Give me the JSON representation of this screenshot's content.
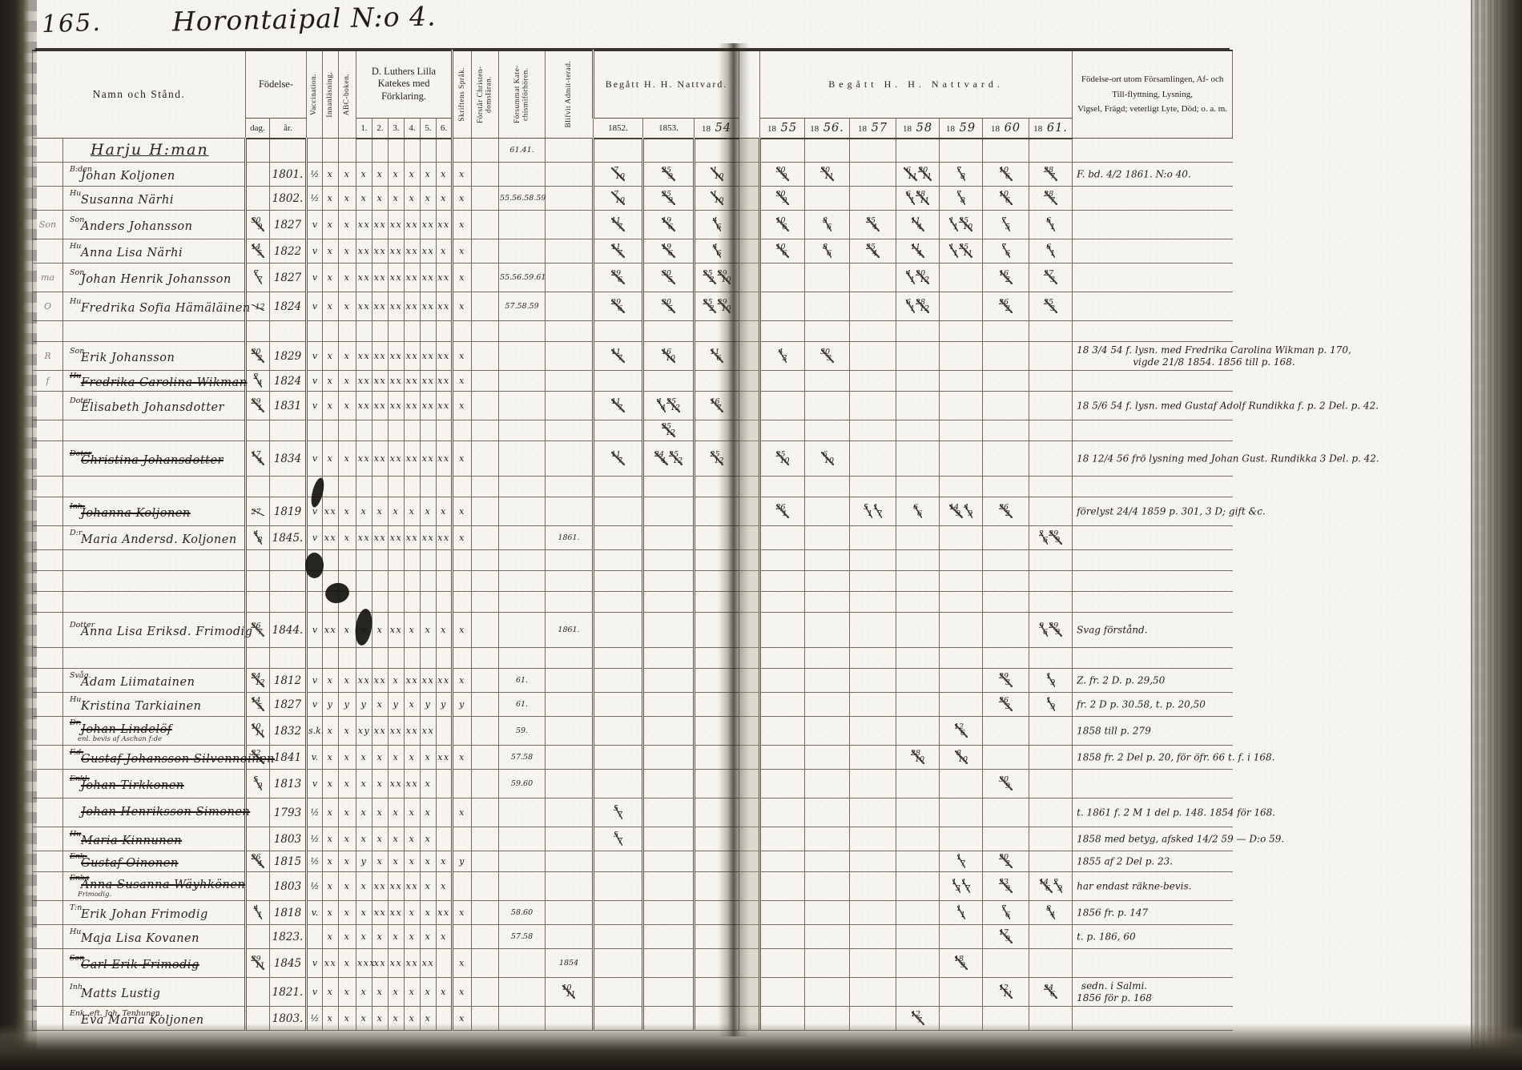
{
  "page": {
    "number": "165.",
    "title": "Horontaipal N:o 4."
  },
  "header": {
    "name": "Namn och Stånd.",
    "birth": "Födelse-",
    "birth_day": "dag.",
    "birth_year": "år.",
    "vaccination": "Vaccination.",
    "innanlasning": "Innanläsning.",
    "abc": "ABC-boken.",
    "katekes": "D. Luthers Lilla Katekes med Förklaring.",
    "katekes_cols": [
      "1.",
      "2.",
      "3.",
      "4.",
      "5.",
      "6."
    ],
    "sprak": "Skriftens Språk.",
    "forstar": "Förstår Christen-domsläran.",
    "forsummat": "Försummat Kate-chismiförhören.",
    "admitterad": "Blifvit Admit-terad.",
    "nattvard_left": "Begått H. H. Nattvard.",
    "years_left": [
      "1852.",
      "1853.",
      "1854"
    ],
    "nattvard_right": "Begått H. H. Nattvard.",
    "years_right": [
      "1855",
      "1856.",
      "1857",
      "1858",
      "1859",
      "1860",
      "1861."
    ],
    "notes_line1": "Födelse-ort utom Församlingen, Af- och Till-flyttning, Lysning,",
    "notes_line2": "Vigsel, Frägd; veterligt Lyte, Död; o. a. m."
  },
  "rows": [
    {
      "h": "d",
      "heading": true,
      "name": "Harju H:man",
      "fs": "61.41."
    },
    {
      "h": "d",
      "label": "B:den",
      "name": "Johan Koljonen",
      "by": "1801.",
      "vc": "½",
      "in": "x",
      "ab": "x",
      "k": [
        "x",
        "x",
        "x",
        "x",
        "x",
        "x"
      ],
      "sp": "x",
      "y": [
        "7/10",
        "25/9",
        "1/10",
        "30/9",
        "30/11",
        "",
        "6/11 20/11",
        "7/8",
        "10/6",
        "28/7"
      ],
      "note": "F. bd. 4/2 1861. N:o 40."
    },
    {
      "h": "d",
      "label": "Hu",
      "name": "Susanna Närhi",
      "by": "1802.",
      "vc": "½",
      "in": "x",
      "ab": "x",
      "k": [
        "x",
        "x",
        "x",
        "x",
        "x",
        "x"
      ],
      "sp": "x",
      "fs": "55.56.58.59",
      "y": [
        "7/10",
        "25/9",
        "1/10",
        "30/9",
        "",
        "",
        "6/1 28/11",
        "7/8",
        "10/6",
        "28/7"
      ]
    },
    {
      "h": "t",
      "m": "Son",
      "label": "Son",
      "name": "Anders Johansson",
      "bd": "30/9",
      "by": "1827",
      "vc": "v",
      "in": "x",
      "ab": "x",
      "k": [
        "xx",
        "xx",
        "xx",
        "xx",
        "xx",
        "xx"
      ],
      "sp": "x",
      "y": [
        "11/7",
        "19/6",
        "4/6",
        "10/6",
        "8/6",
        "25/4",
        "11/4",
        "1/1 25/10",
        "7/5",
        "6/1"
      ]
    },
    {
      "h": "d",
      "label": "Hu",
      "name": "Anna Lisa Närhi",
      "bd": "14/5",
      "by": "1822",
      "vc": "v",
      "in": "x",
      "ab": "x",
      "k": [
        "xx",
        "xx",
        "xx",
        "xx",
        "xx",
        "x"
      ],
      "sp": "x",
      "y": [
        "11/7",
        "19/6",
        "4/6",
        "10/6",
        "8/6",
        "25/4",
        "11/4",
        "1/1 25/11",
        "7/6",
        "6/1"
      ]
    },
    {
      "h": "t",
      "m": "ma",
      "label": "Son",
      "name": "Johan Henrik Johansson",
      "bd": "7/7",
      "by": "1827",
      "vc": "v",
      "in": "x",
      "ab": "x",
      "k": [
        "xx",
        "xx",
        "xx",
        "xx",
        "xx",
        "xx"
      ],
      "sp": "x",
      "fs": "55.56.59.61",
      "y": [
        "29/6",
        "30/5",
        "25/2 29/10",
        "",
        "",
        "",
        "4/1 20/12",
        "",
        "16/2",
        "27/3"
      ]
    },
    {
      "h": "t",
      "m": "O",
      "label": "Hu",
      "name": "Fredrika Sofia Hämäläinen",
      "bd": "/12",
      "by": "1824",
      "vc": "v",
      "in": "x",
      "ab": "x",
      "k": [
        "xx",
        "xx",
        "xx",
        "xx",
        "xx",
        "xx"
      ],
      "sp": "x",
      "fs": "57.58.59",
      "y": [
        "29/6",
        "30/5",
        "25/2 29/10",
        "",
        "",
        "",
        "6/1 28/12",
        "",
        "26/2",
        "25/3"
      ]
    },
    {
      "h": "s"
    },
    {
      "h": "t",
      "m": "R",
      "label": "Son",
      "name": "Erik Johansson",
      "bd": "20/2",
      "by": "1829",
      "vc": "v",
      "in": "x",
      "ab": "x",
      "k": [
        "xx",
        "xx",
        "xx",
        "xx",
        "xx",
        "xx"
      ],
      "sp": "x",
      "y": [
        "11/7",
        "16/10",
        "11/6",
        "4/3",
        "30/3",
        "",
        "",
        "",
        "",
        ""
      ],
      "note": "18 3/4 54 f. lysn. med Fredrika Carolina Wikman p. 170,",
      "note2": "vigde 21/8 1854.  1856 till p. 168."
    },
    {
      "h": "s",
      "m": "f",
      "label": "Hu",
      "name": "Fredrika Carolina Wikman",
      "struck": true,
      "bd": "2/4",
      "by": "1824",
      "vc": "v",
      "in": "x",
      "ab": "x",
      "k": [
        "xx",
        "xx",
        "xx",
        "xx",
        "xx",
        "xx"
      ],
      "sp": "x"
    },
    {
      "h": "t",
      "label": "Doter",
      "name": "Elisabeth Johansdotter",
      "bd": "29/1",
      "by": "1831",
      "vc": "v",
      "in": "x",
      "ab": "x",
      "k": [
        "xx",
        "xx",
        "xx",
        "xx",
        "xx",
        "xx"
      ],
      "sp": "x",
      "y": [
        "11/7",
        "4/4 25/12",
        "16/7",
        "",
        "",
        "",
        "",
        "",
        "",
        ""
      ],
      "note": "18 5/6 54 f. lysn. med Gustaf Adolf Rundikka f. p. 2 Del. p. 42."
    },
    {
      "h": "s",
      "y": [
        "",
        "25/12",
        "",
        "",
        "",
        "",
        "",
        "",
        "",
        ""
      ]
    },
    {
      "h": "x",
      "label": "Doter",
      "name": "Christina Johansdotter",
      "struck": true,
      "bd": "17/4",
      "by": "1834",
      "vc": "v",
      "in": "x",
      "ab": "x",
      "k": [
        "xx",
        "xx",
        "xx",
        "xx",
        "xx",
        "xx"
      ],
      "sp": "x",
      "y": [
        "11/7",
        "24/4 25/12",
        "25/12",
        "25/10",
        "6/10",
        "",
        "",
        "",
        "",
        ""
      ],
      "note": "18 12/4 56 frö lysning med Johan Gust. Rundikka  3 Del. p. 42."
    },
    {
      "h": "s"
    },
    {
      "h": "t",
      "label": "Inh.",
      "name": "Johanna Koljonen",
      "struck": true,
      "bd": "27/",
      "by": "1819",
      "vc": "v",
      "in": "xx",
      "ab": "x",
      "k": [
        "x",
        "x",
        "x",
        "x",
        "x",
        "x"
      ],
      "sp": "x",
      "y": [
        "",
        "",
        "",
        "26/1",
        "",
        "5/1 1/7",
        "6/6",
        "14/9 4/9",
        "26/2",
        ""
      ],
      "note": "förelyst 24/4 1859 p. 301, 3 D; gift &c."
    },
    {
      "h": "d",
      "label": "D:r",
      "name": "Maria Andersd. Koljonen",
      "bd": "4/8",
      "by": "1845.",
      "vc": "v",
      "in": "xx",
      "ab": "x",
      "k": [
        "xx",
        "xx",
        "xx",
        "xx",
        "xx",
        "xx"
      ],
      "sp": "x",
      "ad": "1861.",
      "y": [
        "",
        "",
        "",
        "",
        "",
        "",
        "",
        "",
        "",
        "2/6 29/9"
      ]
    },
    {
      "h": "s"
    },
    {
      "h": "s"
    },
    {
      "h": "s"
    },
    {
      "h": "x",
      "label": "Dotter",
      "name": "Anna Lisa Eriksd. Frimodig",
      "bd": "26/7",
      "by": "1844.",
      "vc": "v",
      "in": "xx",
      "ab": "x",
      "k": [
        "x",
        "x",
        "xx",
        "x",
        "x",
        "x"
      ],
      "sp": "x",
      "ad": "1861.",
      "y": [
        "",
        "",
        "",
        "",
        "",
        "",
        "",
        "",
        "",
        "9/6 29/9"
      ],
      "note": "Svag förstånd."
    },
    {
      "h": "s"
    },
    {
      "h": "d",
      "label": "Svåg.",
      "name": "Adam Liimatainen",
      "bd": "24/12",
      "by": "1812",
      "vc": "v",
      "in": "x",
      "ab": "x",
      "k": [
        "xx",
        "xx",
        "x",
        "xx",
        "xx",
        "xx"
      ],
      "sp": "x",
      "fs": "61.",
      "y": [
        "",
        "",
        "",
        "",
        "",
        "",
        "",
        "",
        "29/3",
        "1/9"
      ],
      "note": "Z. fr. 2 D. p. 29,50"
    },
    {
      "h": "d",
      "label": "Hu",
      "name": "Kristina Tarkiainen",
      "bd": "14/5",
      "by": "1827",
      "vc": "v",
      "in": "y",
      "ab": "y",
      "k": [
        "y",
        "x",
        "y",
        "x",
        "y",
        "y"
      ],
      "sp": "y",
      "fs": "61.",
      "y": [
        "",
        "",
        "",
        "",
        "",
        "",
        "",
        "",
        "26/3",
        "1/9"
      ],
      "note": "fr. 2 D p. 30.58,  t. p. 20,50"
    },
    {
      "h": "t",
      "label": "Dr.",
      "sub": "enl. bevis af Aschan f:de",
      "name": "Johan Lindelöf",
      "struck": true,
      "bd": "10/11",
      "by": "1832",
      "vc": "s.k.",
      "in": "x",
      "ab": "x",
      "k": [
        "xy",
        "xx",
        "xx",
        "xx",
        "xx",
        ""
      ],
      "sp": "",
      "fs": "59.",
      "y": [
        "",
        "",
        "",
        "",
        "",
        "",
        "",
        "12/6",
        "",
        ""
      ],
      "note": "1858 till p. 279"
    },
    {
      "h": "d",
      "label": "F.d.",
      "name": "Gustaf Johansson Silvennoinen",
      "struck": true,
      "bd": "22/4",
      "by": "1841",
      "vc": "v.",
      "in": "x",
      "ab": "x",
      "k": [
        "x",
        "x",
        "x",
        "x",
        "x",
        "xx"
      ],
      "sp": "x",
      "fs": "57.58",
      "y": [
        "",
        "",
        "",
        "",
        "",
        "",
        "28/10",
        "8/10",
        "",
        ""
      ],
      "note": "1858 fr. 2 Del p. 20, för öfr. 66 t. f. i 168."
    },
    {
      "h": "t",
      "label": "Enkl.",
      "name": "Johan Tirkkonen",
      "struck": true,
      "bd": "5/9",
      "by": "1813",
      "vc": "v",
      "in": "x",
      "ab": "x",
      "k": [
        "x",
        "x",
        "xx",
        "xx",
        "x",
        ""
      ],
      "sp": "",
      "fs": "59.60",
      "y": [
        "",
        "",
        "",
        "",
        "",
        "",
        "",
        "",
        "30/9",
        ""
      ]
    },
    {
      "h": "t",
      "name": "Johan Henriksson Simonen",
      "struck": true,
      "by": "1793",
      "vc": "½",
      "in": "x",
      "ab": "x",
      "k": [
        "x",
        "x",
        "x",
        "x",
        "x",
        ""
      ],
      "sp": "x",
      "y": [
        "5/7",
        "",
        "",
        "",
        "",
        "",
        "",
        "",
        "",
        ""
      ],
      "note": "t. 1861 f. 2 M 1 del p. 148.  1854 för 168."
    },
    {
      "h": "d",
      "label": "Hu",
      "name": "Maria Kinnunen",
      "struck": true,
      "by": "1803",
      "vc": "½",
      "in": "x",
      "ab": "x",
      "k": [
        "x",
        "x",
        "x",
        "x",
        "x",
        ""
      ],
      "sp": "",
      "y": [
        "5/7",
        "",
        "",
        "",
        "",
        "",
        "",
        "",
        "",
        ""
      ],
      "note": "1858 med betyg, afsked 14/2 59 — D:o 59."
    },
    {
      "h": "s",
      "label": "Enk.",
      "name": "Gustaf Oinonen",
      "struck": true,
      "bd": "26/4",
      "by": "1815",
      "vc": "½",
      "in": "x",
      "ab": "x",
      "k": [
        "y",
        "x",
        "x",
        "x",
        "x",
        "x"
      ],
      "sp": "y",
      "y": [
        "",
        "",
        "",
        "",
        "",
        "",
        "",
        "1/7",
        "20/2",
        ""
      ],
      "note": "1855 af 2 Del p. 23."
    },
    {
      "h": "t",
      "label": "Enka",
      "sub": "Frimodig.",
      "name": "Anna Susanna Wäyhkönen",
      "struck": true,
      "by": "1803",
      "vc": "½",
      "in": "x",
      "ab": "x",
      "k": [
        "x",
        "xx",
        "xx",
        "xx",
        "x",
        "x"
      ],
      "sp": "",
      "y": [
        "",
        "",
        "",
        "",
        "",
        "",
        "",
        "1/3 1/7",
        "23/9",
        "14/6 2/9"
      ],
      "note": "har endast räkne-bevis."
    },
    {
      "h": "d",
      "label": "T:n",
      "name": "Erik Johan Frimodig",
      "bd": "4/1",
      "by": "1818",
      "vc": "v.",
      "in": "x",
      "ab": "x",
      "k": [
        "x",
        "xx",
        "xx",
        "x",
        "x",
        "xx"
      ],
      "sp": "x",
      "fs": "58.60",
      "y": [
        "",
        "",
        "",
        "",
        "",
        "",
        "",
        "1/1",
        "7/6",
        "8/4"
      ],
      "note": "1856 fr. p. 147"
    },
    {
      "h": "d",
      "label": "Hu",
      "name": "Maja Lisa Kovanen",
      "by": "1823.",
      "in": "x",
      "ab": "x",
      "k": [
        "x",
        "x",
        "x",
        "x",
        "x",
        "x"
      ],
      "sp": "",
      "fs": "57.58",
      "y": [
        "",
        "",
        "",
        "",
        "",
        "",
        "",
        "",
        "17/9",
        ""
      ],
      "note": "t. p. 186, 60"
    },
    {
      "h": "t",
      "label": "Son",
      "name": "Carl Erik Frimodig",
      "struck": true,
      "bd": "29/11",
      "by": "1845",
      "vc": "v",
      "in": "xx",
      "ab": "x",
      "k": [
        "xxx",
        "xx",
        "xx",
        "xx",
        "xx",
        ""
      ],
      "sp": "x",
      "ad": "1854",
      "y": [
        "",
        "",
        "",
        "",
        "",
        "",
        "",
        "18/9",
        "",
        ""
      ]
    },
    {
      "h": "t",
      "label": "Inh.",
      "name": "Matts Lustig",
      "by": "1821.",
      "vc": "v",
      "in": "x",
      "ab": "x",
      "k": [
        "x",
        "x",
        "x",
        "x",
        "x",
        "x"
      ],
      "sp": "x",
      "ad": "10/11",
      "y": [
        "",
        "",
        "",
        "",
        "",
        "",
        "",
        "",
        "12/11",
        "24/6"
      ],
      "note": "sedn. i Salmi.",
      "note2": "1856 för p. 168"
    },
    {
      "h": "d",
      "label": "Enk. eft. Joh. Tenhunen,",
      "name": "Eva Maria Koljonen",
      "by": "1803.",
      "vc": "½",
      "in": "x",
      "ab": "x",
      "k": [
        "x",
        "x",
        "x",
        "x",
        "x",
        ""
      ],
      "sp": "x",
      "y": [
        "",
        "",
        "",
        "",
        "",
        "",
        "12/7",
        "",
        "",
        ""
      ]
    }
  ]
}
